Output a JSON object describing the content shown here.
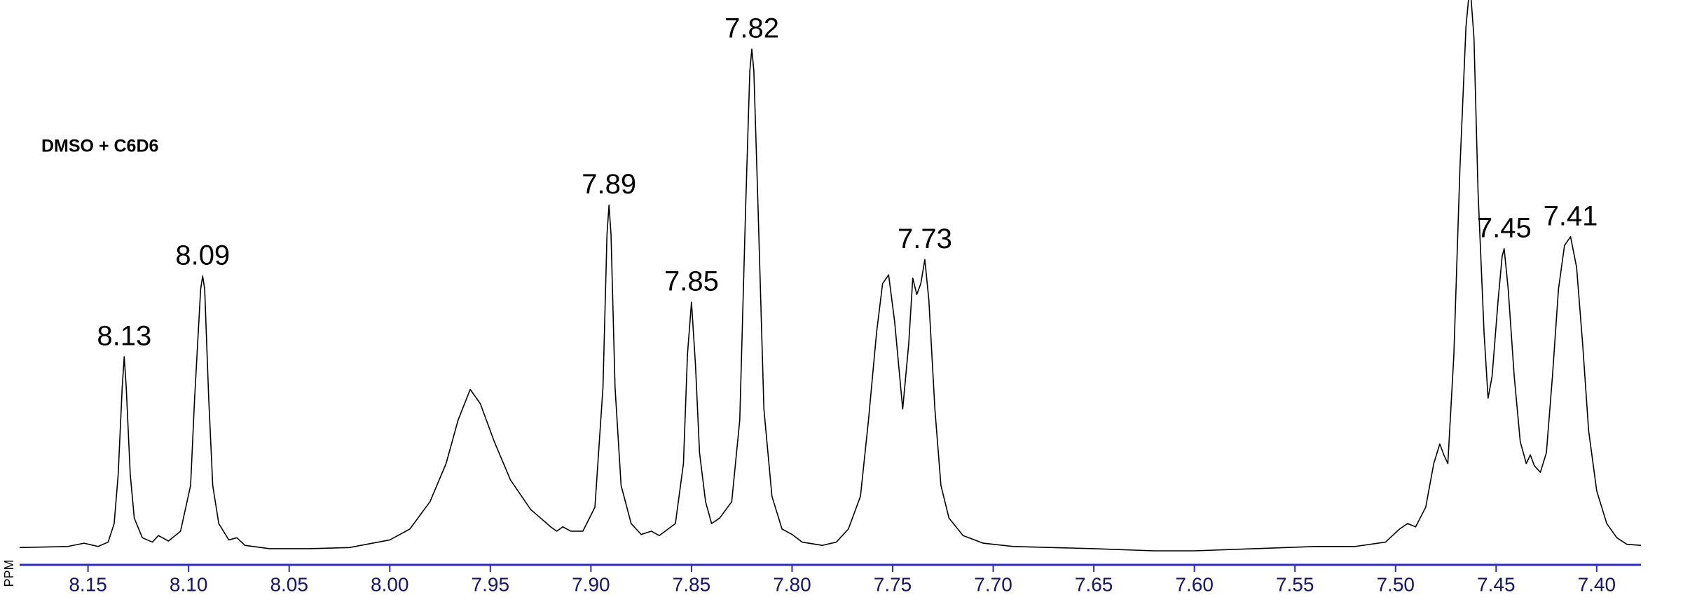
{
  "chart_data": {
    "type": "line",
    "annotation": "DMSO + C6D6",
    "xlabel": "PPM",
    "color": "#000000",
    "axis_color": "#2a2ad0",
    "xlim": [
      8.184,
      7.378
    ],
    "ylim": [
      0,
      505
    ],
    "xticks": [
      8.15,
      {
        "value": 8.1,
        "label": "8.10"
      },
      8.05,
      {
        "value": 8,
        "label": "8.00"
      },
      7.95,
      {
        "value": 7.9,
        "label": "7.90"
      },
      7.85,
      {
        "value": 7.8,
        "label": "7.80"
      },
      7.75,
      {
        "value": 7.7,
        "label": "7.70"
      },
      7.65,
      {
        "value": 7.6,
        "label": "7.60"
      },
      7.55,
      {
        "value": 7.5,
        "label": "7.50"
      },
      7.45,
      {
        "value": 7.4,
        "label": "7.40"
      }
    ],
    "x": [
      8.184,
      8.16,
      8.152,
      8.145,
      8.14,
      8.137,
      8.135,
      8.133,
      8.132,
      8.131,
      8.129,
      8.127,
      8.123,
      8.118,
      8.115,
      8.11,
      8.104,
      8.099,
      8.097,
      8.094,
      8.093,
      8.092,
      8.09,
      8.088,
      8.085,
      8.08,
      8.076,
      8.072,
      8.06,
      8.04,
      8.02,
      8.0,
      7.99,
      7.98,
      7.972,
      7.966,
      7.96,
      7.955,
      7.948,
      7.94,
      7.93,
      7.92,
      7.917,
      7.914,
      7.91,
      7.904,
      7.898,
      7.894,
      7.892,
      7.891,
      7.89,
      7.888,
      7.885,
      7.88,
      7.875,
      7.87,
      7.866,
      7.858,
      7.854,
      7.852,
      7.85,
      7.848,
      7.846,
      7.843,
      7.84,
      7.836,
      7.83,
      7.826,
      7.823,
      7.821,
      7.82,
      7.819,
      7.817,
      7.814,
      7.81,
      7.805,
      7.8,
      7.795,
      7.785,
      7.778,
      7.772,
      7.766,
      7.762,
      7.758,
      7.755,
      7.752,
      7.749,
      7.746,
      7.745,
      7.742,
      7.74,
      7.738,
      7.736,
      7.734,
      7.732,
      7.729,
      7.726,
      7.722,
      7.715,
      7.705,
      7.69,
      7.65,
      7.62,
      7.6,
      7.57,
      7.54,
      7.52,
      7.505,
      7.498,
      7.494,
      7.49,
      7.485,
      7.481,
      7.478,
      7.476,
      7.474,
      7.471,
      7.468,
      7.465,
      7.463,
      7.461,
      7.459,
      7.456,
      7.454,
      7.452,
      7.449,
      7.447,
      7.446,
      7.444,
      7.441,
      7.438,
      7.435,
      7.433,
      7.431,
      7.428,
      7.425,
      7.422,
      7.419,
      7.416,
      7.413,
      7.41,
      7.407,
      7.404,
      7.4,
      7.395,
      7.39,
      7.385,
      7.378
    ],
    "values": [
      3,
      4,
      7,
      4,
      8,
      25,
      70,
      150,
      178,
      150,
      70,
      30,
      12,
      8,
      14,
      9,
      18,
      60,
      140,
      240,
      252,
      240,
      140,
      60,
      25,
      10,
      12,
      5,
      2,
      2,
      3,
      10,
      20,
      45,
      80,
      120,
      148,
      135,
      100,
      65,
      38,
      22,
      18,
      22,
      18,
      18,
      40,
      150,
      290,
      317,
      290,
      150,
      60,
      25,
      15,
      18,
      14,
      25,
      80,
      180,
      228,
      170,
      90,
      45,
      25,
      30,
      45,
      120,
      320,
      440,
      460,
      440,
      320,
      130,
      50,
      20,
      15,
      8,
      5,
      8,
      20,
      50,
      120,
      200,
      245,
      253,
      210,
      150,
      130,
      190,
      250,
      235,
      245,
      267,
      230,
      130,
      60,
      30,
      14,
      7,
      4,
      2,
      0,
      0,
      2,
      4,
      4,
      8,
      20,
      25,
      22,
      40,
      80,
      98,
      88,
      80,
      180,
      350,
      480,
      520,
      470,
      330,
      200,
      140,
      160,
      230,
      270,
      277,
      240,
      160,
      100,
      80,
      88,
      78,
      72,
      90,
      160,
      240,
      280,
      288,
      260,
      190,
      110,
      55,
      25,
      12,
      6,
      5
    ],
    "annotations": [
      {
        "x": 8.132,
        "label": "8.13"
      },
      {
        "x": 8.093,
        "label": "8.09"
      },
      {
        "x": 7.891,
        "label": "7.89"
      },
      {
        "x": 7.85,
        "label": "7.85"
      },
      {
        "x": 7.82,
        "label": "7.82"
      },
      {
        "x": 7.734,
        "label": "7.73"
      },
      {
        "x": 7.446,
        "label": "7.45"
      },
      {
        "x": 7.413,
        "label": "7.41"
      }
    ]
  }
}
